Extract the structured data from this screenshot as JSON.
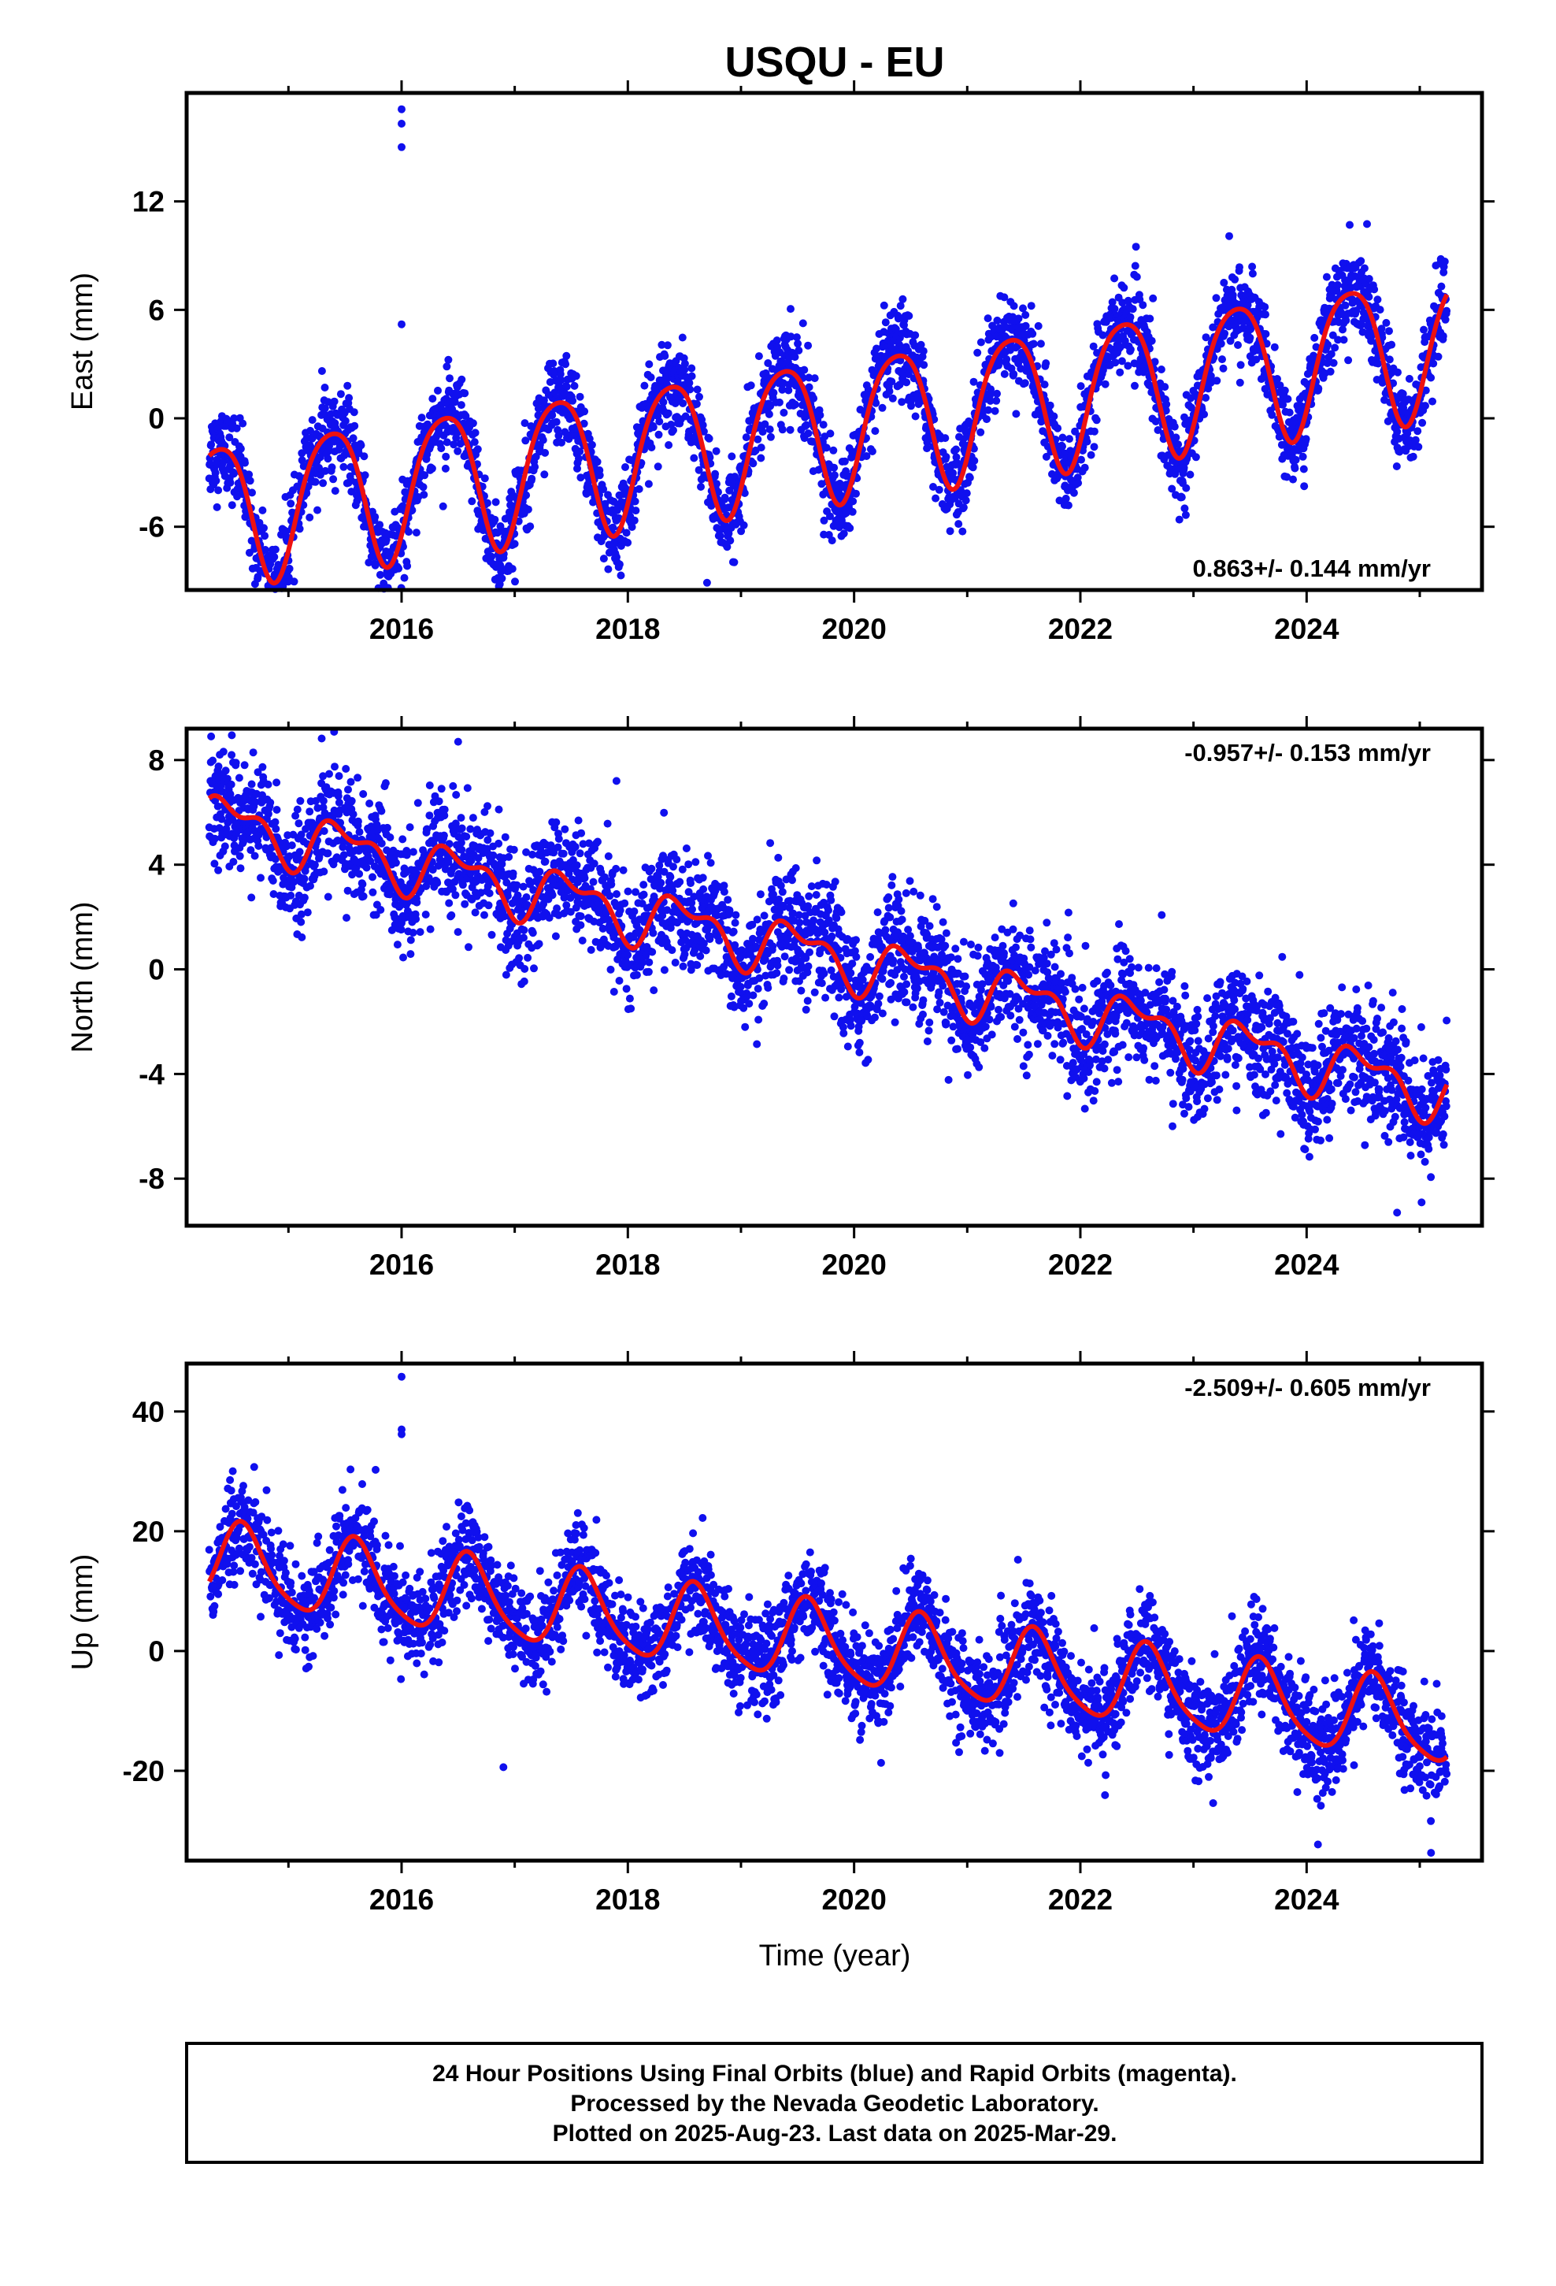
{
  "title": "USQU - EU",
  "xlabel": "Time (year)",
  "footer": {
    "lines": [
      "24 Hour Positions Using Final Orbits (blue) and Rapid Orbits (magenta).",
      "Processed by the Nevada Geodetic Laboratory.",
      "Plotted on 2025-Aug-23. Last data on 2025-Mar-29."
    ]
  },
  "colors": {
    "points": "#1010ee",
    "fit": "#ee1111",
    "frame": "#000000"
  },
  "chart_data": [
    {
      "type": "scatter",
      "name": "east",
      "ylabel": "East (mm)",
      "rate_label": "0.863+/- 0.144 mm/yr",
      "xlim": [
        2014.1,
        2025.55
      ],
      "ylim": [
        -9.5,
        18
      ],
      "yticks": [
        -6,
        0,
        6,
        12
      ],
      "xticks": [
        2016,
        2018,
        2020,
        2022,
        2024
      ],
      "x_start": 2014.3,
      "x_end": 2025.24,
      "model": {
        "offset": -0.2,
        "trend": 0.863,
        "annual_amp": 3.9,
        "annual_peak": 0.38,
        "semiannual_amp": 0.6,
        "semiannual_peak": 0.12,
        "noise": 1.2
      },
      "outliers": [
        {
          "x": 2016.0,
          "y": 17.1
        },
        {
          "x": 2016.0,
          "y": 16.3
        },
        {
          "x": 2016.0,
          "y": 15.0
        },
        {
          "x": 2016.0,
          "y": 5.2
        },
        {
          "x": 2018.7,
          "y": -9.1
        }
      ]
    },
    {
      "type": "scatter",
      "name": "north",
      "ylabel": "North (mm)",
      "rate_label": "-0.957+/- 0.153 mm/yr",
      "xlim": [
        2014.1,
        2025.55
      ],
      "ylim": [
        -9.8,
        9.2
      ],
      "yticks": [
        -8,
        -4,
        0,
        4,
        8
      ],
      "xticks": [
        2016,
        2018,
        2020,
        2022,
        2024
      ],
      "x_start": 2014.3,
      "x_end": 2025.24,
      "model": {
        "offset": 0.3,
        "trend": -0.957,
        "annual_amp": 0.9,
        "annual_peak": 0.5,
        "semiannual_amp": 0.5,
        "semiannual_peak": 0.3,
        "noise": 1.1
      },
      "outliers": [
        {
          "x": 2016.5,
          "y": 8.7
        },
        {
          "x": 2024.8,
          "y": -9.3
        },
        {
          "x": 2017.9,
          "y": 7.2
        }
      ]
    },
    {
      "type": "scatter",
      "name": "up",
      "ylabel": "Up (mm)",
      "rate_label": "-2.509+/- 0.605 mm/yr",
      "xlim": [
        2014.1,
        2025.55
      ],
      "ylim": [
        -35,
        48
      ],
      "yticks": [
        -20,
        0,
        20,
        40
      ],
      "xticks": [
        2016,
        2018,
        2020,
        2022,
        2024
      ],
      "x_start": 2014.3,
      "x_end": 2025.24,
      "model": {
        "offset": 0.5,
        "trend": -2.509,
        "annual_amp": 6.5,
        "annual_peak": 0.6,
        "semiannual_amp": 1.2,
        "semiannual_peak": 0.55,
        "noise": 4.0
      },
      "outliers": [
        {
          "x": 2016.0,
          "y": 45.8
        },
        {
          "x": 2016.0,
          "y": 37
        },
        {
          "x": 2016.0,
          "y": 36.2
        },
        {
          "x": 2016.9,
          "y": -19.4
        },
        {
          "x": 2024.1,
          "y": -32.3
        },
        {
          "x": 2025.1,
          "y": -33.7
        }
      ]
    }
  ]
}
